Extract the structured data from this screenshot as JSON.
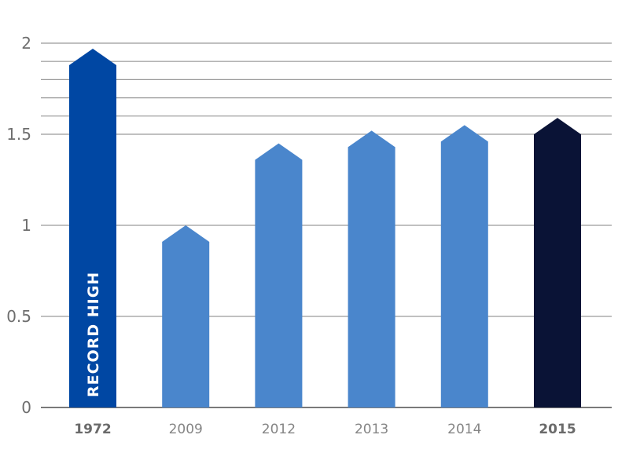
{
  "chart_data": {
    "type": "bar",
    "categories": [
      "1972",
      "2009",
      "2012",
      "2013",
      "2014",
      "2015"
    ],
    "values": [
      1.97,
      1.0,
      1.45,
      1.52,
      1.55,
      1.59
    ],
    "highlighted_categories": [
      "1972",
      "2015"
    ],
    "annotations": [
      {
        "category": "1972",
        "text": "RECORD HIGH"
      }
    ],
    "ylim": [
      0,
      2
    ],
    "yticks": [
      0,
      0.5,
      1,
      1.5,
      2
    ],
    "yticks_labels": [
      "0",
      "0.5",
      "1",
      "1.5",
      "2"
    ],
    "minor_gridlines": [
      1.6,
      1.7,
      1.8,
      1.9
    ],
    "grid": true,
    "bar_shape": "arrow-top",
    "colors": {
      "1972": "#0047a3",
      "2009": "#4a86cc",
      "2012": "#4a86cc",
      "2013": "#4a86cc",
      "2014": "#4a86cc",
      "2015": "#0a1336",
      "gridline": "#9a9a9a",
      "axis": "#7a7a7a"
    },
    "title": "",
    "xlabel": "",
    "ylabel": ""
  }
}
